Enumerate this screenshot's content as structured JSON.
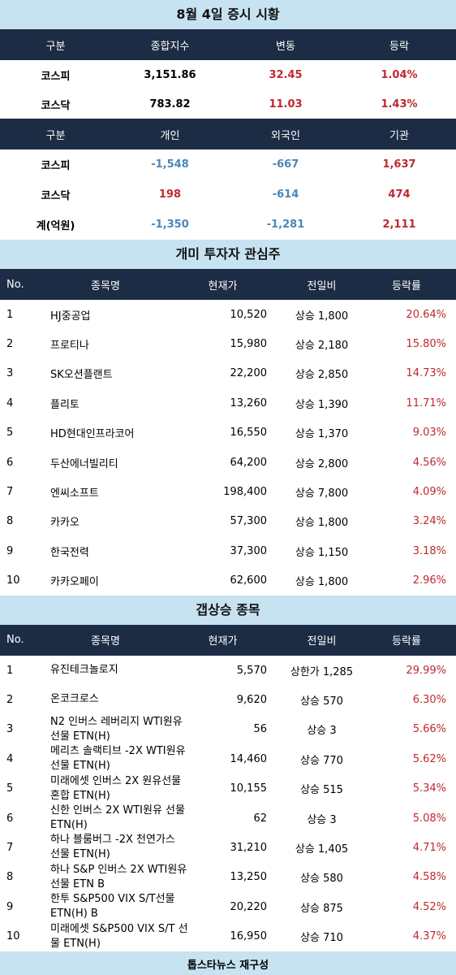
{
  "market": {
    "title": "8월 4일 증시 시황",
    "index_headers": [
      "구분",
      "종합지수",
      "변동",
      "등락"
    ],
    "index_rows": [
      {
        "name": "코스피",
        "index": "3,151.86",
        "change": "32.45",
        "rate": "1.04%"
      },
      {
        "name": "코스닥",
        "index": "783.82",
        "change": "11.03",
        "rate": "1.43%"
      }
    ],
    "flow_headers": [
      "구분",
      "개인",
      "외국인",
      "기관"
    ],
    "flow_rows": [
      {
        "name": "코스피",
        "individual": "-1,548",
        "foreign": "-667",
        "institution": "1,637"
      },
      {
        "name": "코스닥",
        "individual": "198",
        "foreign": "-614",
        "institution": "474"
      },
      {
        "name": "계(억원)",
        "individual": "-1,350",
        "foreign": "-1,281",
        "institution": "2,111"
      }
    ]
  },
  "ant": {
    "title": "개미 투자자 관심주",
    "headers": [
      "No.",
      "종목명",
      "현재가",
      "전일비",
      "등락률"
    ],
    "rows": [
      {
        "no": "1",
        "name": "HJ중공업",
        "price": "10,520",
        "change": "상승 1,800",
        "rate": "20.64%"
      },
      {
        "no": "2",
        "name": "프로티나",
        "price": "15,980",
        "change": "상승 2,180",
        "rate": "15.80%"
      },
      {
        "no": "3",
        "name": "SK오션플랜트",
        "price": "22,200",
        "change": "상승 2,850",
        "rate": "14.73%"
      },
      {
        "no": "4",
        "name": "플리토",
        "price": "13,260",
        "change": "상승 1,390",
        "rate": "11.71%"
      },
      {
        "no": "5",
        "name": "HD현대인프라코어",
        "price": "16,550",
        "change": "상승 1,370",
        "rate": "9.03%"
      },
      {
        "no": "6",
        "name": "두산에너빌리티",
        "price": "64,200",
        "change": "상승 2,800",
        "rate": "4.56%"
      },
      {
        "no": "7",
        "name": "엔씨소프트",
        "price": "198,400",
        "change": "상승 7,800",
        "rate": "4.09%"
      },
      {
        "no": "8",
        "name": "카카오",
        "price": "57,300",
        "change": "상승 1,800",
        "rate": "3.24%"
      },
      {
        "no": "9",
        "name": "한국전력",
        "price": "37,300",
        "change": "상승 1,150",
        "rate": "3.18%"
      },
      {
        "no": "10",
        "name": "카카오페이",
        "price": "62,600",
        "change": "상승 1,800",
        "rate": "2.96%"
      }
    ]
  },
  "gap": {
    "title": "갭상승 종목",
    "headers": [
      "No.",
      "종목명",
      "현재가",
      "전일비",
      "등락률"
    ],
    "rows": [
      {
        "no": "1",
        "name1": "유진테크놀로지",
        "name2": "",
        "price": "5,570",
        "change": "상한가 1,285",
        "rate": "29.99%"
      },
      {
        "no": "2",
        "name1": "온코크로스",
        "name2": "",
        "price": "9,620",
        "change": "상승 570",
        "rate": "6.30%"
      },
      {
        "no": "3",
        "name1": "N2 인버스 레버리지 WTI원유",
        "name2": "선물 ETN(H)",
        "price": "56",
        "change": "상승 3",
        "rate": "5.66%"
      },
      {
        "no": "4",
        "name1": "메리츠 솔랙티브 -2X WTI원유",
        "name2": "선물 ETN(H)",
        "price": "14,460",
        "change": "상승 770",
        "rate": "5.62%"
      },
      {
        "no": "5",
        "name1": "미래에셋 인버스 2X 원유선물",
        "name2": "혼합 ETN(H)",
        "price": "10,155",
        "change": "상승 515",
        "rate": "5.34%"
      },
      {
        "no": "6",
        "name1": "신한 인버스 2X WTI원유 선물",
        "name2": "ETN(H)",
        "price": "62",
        "change": "상승 3",
        "rate": "5.08%"
      },
      {
        "no": "7",
        "name1": "하나 블룸버그 -2X 천연가스",
        "name2": "선물 ETN(H)",
        "price": "31,210",
        "change": "상승 1,405",
        "rate": "4.71%"
      },
      {
        "no": "8",
        "name1": "하나 S&P 인버스 2X WTI원유",
        "name2": "선물 ETN B",
        "price": "13,250",
        "change": "상승 580",
        "rate": "4.58%"
      },
      {
        "no": "9",
        "name1": "한투 S&P500 VIX S/T선물",
        "name2": "ETN(H) B",
        "price": "20,220",
        "change": "상승 875",
        "rate": "4.52%"
      },
      {
        "no": "10",
        "name1": "미래에셋 S&P500 VIX S/T 선",
        "name2": "물 ETN(H)",
        "price": "16,950",
        "change": "상승 710",
        "rate": "4.37%"
      }
    ]
  },
  "footer": "톱스타뉴스 재구성",
  "colors": {
    "header_bg": "#1c2c44",
    "title_bg": "#c7e3f1",
    "up": "#c0282d",
    "down": "#4a86b8"
  }
}
